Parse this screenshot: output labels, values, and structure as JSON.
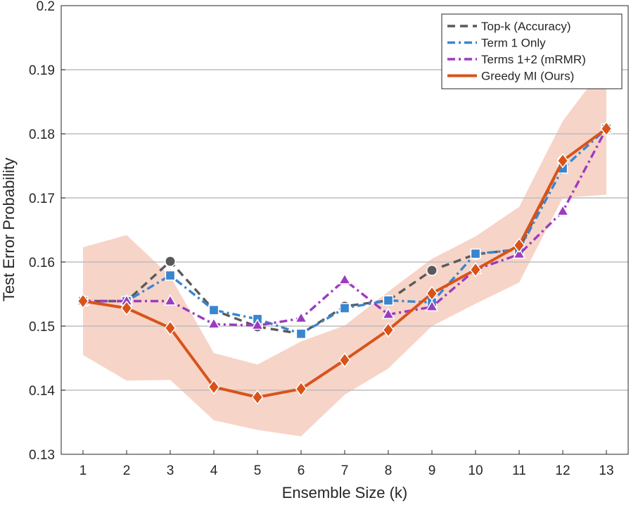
{
  "chart_data": {
    "type": "line",
    "title": "",
    "xlabel": "Ensemble Size (k)",
    "ylabel": "Test Error Probability",
    "xlim": [
      0.5,
      13.5
    ],
    "ylim": [
      0.13,
      0.2
    ],
    "x": [
      1,
      2,
      3,
      4,
      5,
      6,
      7,
      8,
      9,
      10,
      11,
      12,
      13
    ],
    "x_tick_labels": [
      "1",
      "2",
      "3",
      "4",
      "5",
      "6",
      "7",
      "8",
      "9",
      "10",
      "11",
      "12",
      "13"
    ],
    "y_ticks": [
      0.13,
      0.14,
      0.15,
      0.16,
      0.17,
      0.18,
      0.19,
      0.2
    ],
    "y_tick_labels": [
      "0.13",
      "0.14",
      "0.15",
      "0.16",
      "0.17",
      "0.18",
      "0.19",
      "0.2"
    ],
    "grid": "horizontal",
    "legend_position": "top-right",
    "series": [
      {
        "name": "Top-k (Accuracy)",
        "color": "#5a5a5a",
        "line_style": "dashed",
        "marker": "circle",
        "values": [
          0.1539,
          0.1539,
          0.1601,
          0.1525,
          0.1499,
          0.1488,
          0.1531,
          0.154,
          0.1587,
          0.1612,
          0.162,
          0.1758,
          0.1808
        ]
      },
      {
        "name": "Term 1 Only",
        "color": "#3a85d0",
        "line_style": "dashdot",
        "marker": "square",
        "values": [
          0.1539,
          0.1539,
          0.1579,
          0.1525,
          0.1511,
          0.1488,
          0.1528,
          0.154,
          0.1537,
          0.1613,
          0.1619,
          0.1746,
          0.1808
        ]
      },
      {
        "name": "Terms 1+2 (mRMR)",
        "color": "#9b3cbf",
        "line_style": "dashdot",
        "marker": "triangle",
        "values": [
          0.1539,
          0.1539,
          0.1539,
          0.1503,
          0.1501,
          0.1512,
          0.1572,
          0.1518,
          0.153,
          0.1588,
          0.1612,
          0.1679,
          0.1808
        ]
      },
      {
        "name": "Greedy MI (Ours)",
        "color": "#d95319",
        "line_style": "solid",
        "marker": "diamond",
        "values": [
          0.1539,
          0.1528,
          0.1497,
          0.1405,
          0.1389,
          0.1402,
          0.1447,
          0.1494,
          0.1551,
          0.1588,
          0.1626,
          0.1758,
          0.1808
        ],
        "band_lower": [
          0.1455,
          0.1415,
          0.1416,
          0.1353,
          0.1338,
          0.1328,
          0.1393,
          0.1434,
          0.15,
          0.1535,
          0.1568,
          0.17,
          0.1705
        ],
        "band_upper": [
          0.1623,
          0.1642,
          0.1578,
          0.1458,
          0.144,
          0.1476,
          0.1501,
          0.1554,
          0.1605,
          0.164,
          0.1686,
          0.182,
          0.191
        ],
        "band_color": "#f7d4c8"
      }
    ]
  }
}
